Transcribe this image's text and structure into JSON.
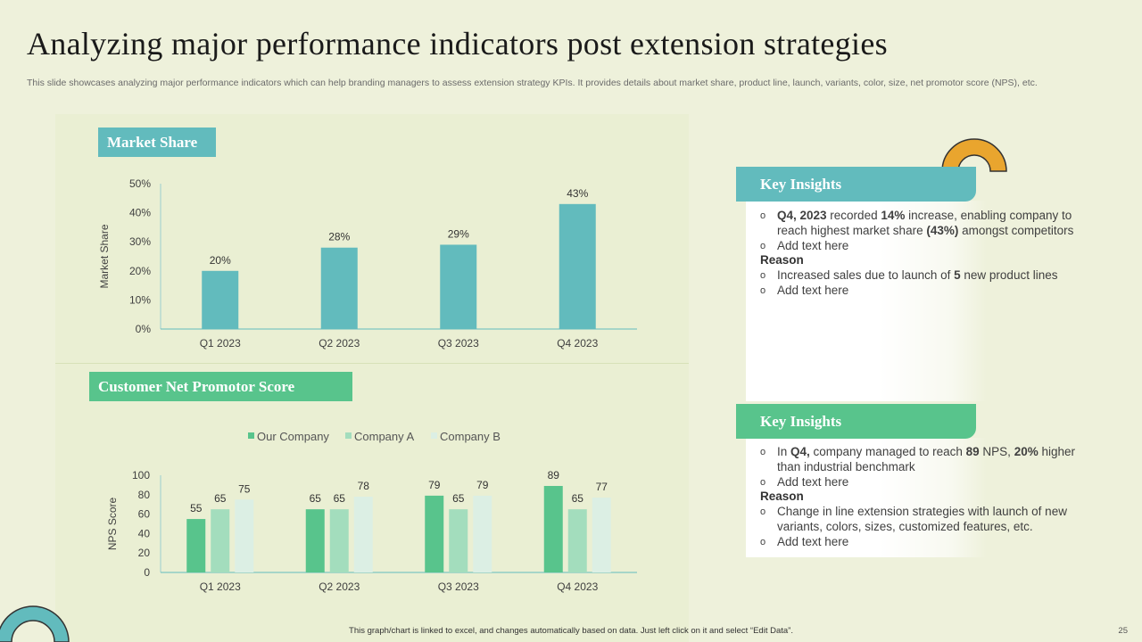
{
  "title": "Analyzing major performance indicators post extension strategies",
  "subtitle": "This slide showcases analyzing major performance indicators which can help branding managers to assess extension strategy KPIs. It provides details about market share, product line, launch, variants, color, size, net promotor score (NPS), etc.",
  "colors": {
    "teal": "#62bbbd",
    "green": "#58c48c",
    "light_green": "#a3ddbd",
    "pale": "#dcefe4",
    "orange": "#e9a52e"
  },
  "sections": {
    "market_share_label": "Market Share",
    "nps_label": "Customer Net Promotor Score"
  },
  "chart_data": [
    {
      "type": "bar",
      "title": "Market Share",
      "categories": [
        "Q1 2023",
        "Q2 2023",
        "Q3 2023",
        "Q4 2023"
      ],
      "values": [
        20,
        28,
        29,
        43
      ],
      "data_labels": [
        "20%",
        "28%",
        "29%",
        "43%"
      ],
      "ylabel": "Market Share",
      "ylim": [
        0,
        50
      ],
      "yticks": [
        "0%",
        "10%",
        "20%",
        "30%",
        "40%",
        "50%"
      ]
    },
    {
      "type": "bar",
      "title": "Customer Net Promotor Score",
      "categories": [
        "Q1 2023",
        "Q2 2023",
        "Q3 2023",
        "Q4 2023"
      ],
      "series": [
        {
          "name": "Our Company",
          "values": [
            55,
            65,
            79,
            89
          ]
        },
        {
          "name": "Company A",
          "values": [
            65,
            65,
            65,
            65
          ]
        },
        {
          "name": "Company B",
          "values": [
            75,
            78,
            79,
            77
          ]
        }
      ],
      "ylabel": "NPS Score",
      "ylim": [
        0,
        100
      ],
      "yticks": [
        "0",
        "20",
        "40",
        "60",
        "80",
        "100"
      ],
      "legend": "top-center"
    }
  ],
  "insights": [
    {
      "heading": "Key Insights",
      "bullets": [
        {
          "bold1": "Q4, 2023",
          "t1": " recorded ",
          "bold2": "14%",
          "t2": "  increase, enabling company to reach highest market share ",
          "bold3": "(43%)",
          "t3": "  amongst competitors"
        },
        {
          "text": "Add text here"
        }
      ],
      "reason_label": "Reason",
      "reason_bullets": [
        {
          "t1": "Increased sales due to launch of ",
          "bold1": "5",
          "t2": " new product lines"
        },
        {
          "text": "Add text here"
        }
      ]
    },
    {
      "heading": "Key Insights",
      "bullets": [
        {
          "t0": "In ",
          "bold1": "Q4,",
          "t1": " company managed to reach ",
          "bold2": "89",
          "t2": " NPS,  ",
          "bold3": "20%",
          "t3": " higher than industrial benchmark"
        },
        {
          "text": "Add text here"
        }
      ],
      "reason_label": "Reason",
      "reason_bullets": [
        {
          "text": "Change in line extension strategies with launch of new variants, colors, sizes, customized features, etc."
        },
        {
          "text": "Add text here"
        }
      ]
    }
  ],
  "footer": "This graph/chart is linked to excel, and changes automatically based on data. Just left click on it and select “Edit Data”.",
  "page_number": "25"
}
